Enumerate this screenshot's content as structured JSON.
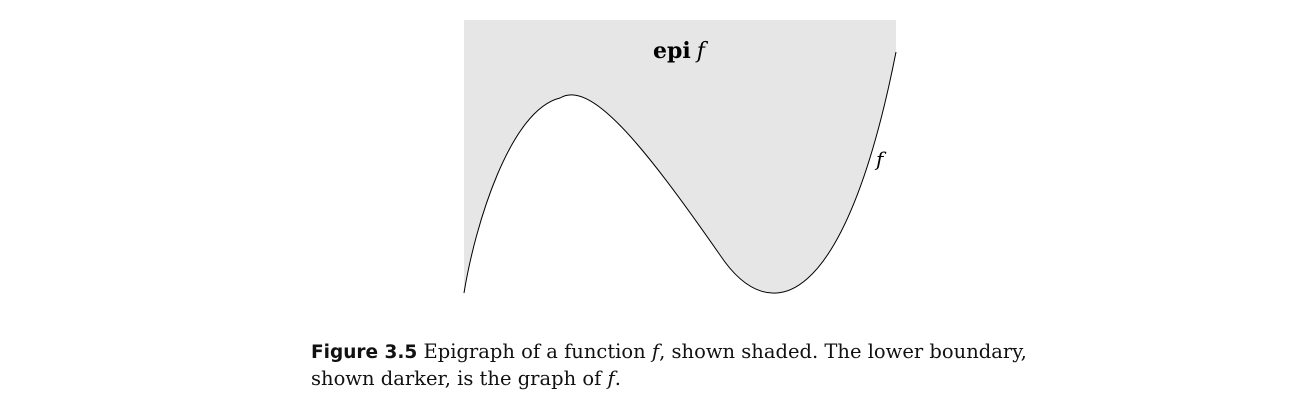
{
  "figure": {
    "region_label": {
      "bold": "epi",
      "symbol": "f"
    },
    "curve_label": "f",
    "colors": {
      "epigraph_fill": "#e6e6e6",
      "curve_stroke": "#000000"
    }
  },
  "caption": {
    "figure_number": "Figure 3.5",
    "text_1": "Epigraph of a function",
    "symbol_1": "f",
    "text_2": ", shown shaded.  The lower boundary, shown darker, is the graph of",
    "symbol_2": "f",
    "text_3": "."
  }
}
